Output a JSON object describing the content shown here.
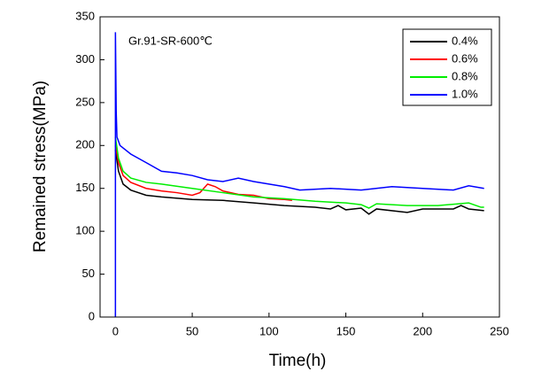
{
  "chart_data": {
    "type": "line",
    "annotation": "Gr.91-SR-600℃",
    "xlabel": "Time(h)",
    "ylabel": "Remained stress(MPa)",
    "xlim": [
      -10,
      250
    ],
    "xticks": [
      0,
      50,
      100,
      150,
      200,
      250
    ],
    "ylim": [
      0,
      350
    ],
    "yticks": [
      0,
      50,
      100,
      150,
      200,
      250,
      300,
      350
    ],
    "legend": "upper right",
    "series": [
      {
        "name": "0.4%",
        "color": "#000000",
        "x": [
          0,
          2,
          5,
          10,
          20,
          30,
          50,
          70,
          90,
          110,
          130,
          140,
          145,
          150,
          160,
          165,
          170,
          190,
          200,
          220,
          225,
          230,
          240
        ],
        "values": [
          195,
          170,
          155,
          148,
          142,
          140,
          137,
          136,
          133,
          130,
          128,
          126,
          130,
          125,
          127,
          120,
          126,
          122,
          126,
          126,
          130,
          126,
          124
        ]
      },
      {
        "name": "0.6%",
        "color": "#ff0000",
        "x": [
          0,
          2,
          5,
          10,
          20,
          30,
          40,
          50,
          55,
          60,
          65,
          70,
          80,
          90,
          100,
          110,
          115
        ],
        "values": [
          200,
          180,
          165,
          157,
          150,
          147,
          145,
          142,
          145,
          155,
          152,
          147,
          143,
          142,
          138,
          137,
          136
        ]
      },
      {
        "name": "0.8%",
        "color": "#00ee00",
        "x": [
          0,
          2,
          5,
          10,
          20,
          30,
          50,
          70,
          90,
          110,
          130,
          150,
          160,
          165,
          170,
          190,
          210,
          230,
          238,
          240
        ],
        "values": [
          210,
          185,
          170,
          162,
          157,
          155,
          150,
          145,
          140,
          138,
          135,
          133,
          131,
          127,
          132,
          130,
          130,
          133,
          128,
          128
        ]
      },
      {
        "name": "1.0%",
        "color": "#0000ff",
        "x": [
          0,
          0,
          0.5,
          1,
          3,
          10,
          20,
          30,
          40,
          50,
          60,
          70,
          80,
          90,
          100,
          110,
          120,
          140,
          160,
          180,
          200,
          220,
          230,
          240
        ],
        "values": [
          0,
          332,
          240,
          210,
          200,
          190,
          180,
          170,
          168,
          165,
          160,
          158,
          162,
          158,
          155,
          152,
          148,
          150,
          148,
          152,
          150,
          148,
          153,
          150
        ]
      }
    ]
  }
}
